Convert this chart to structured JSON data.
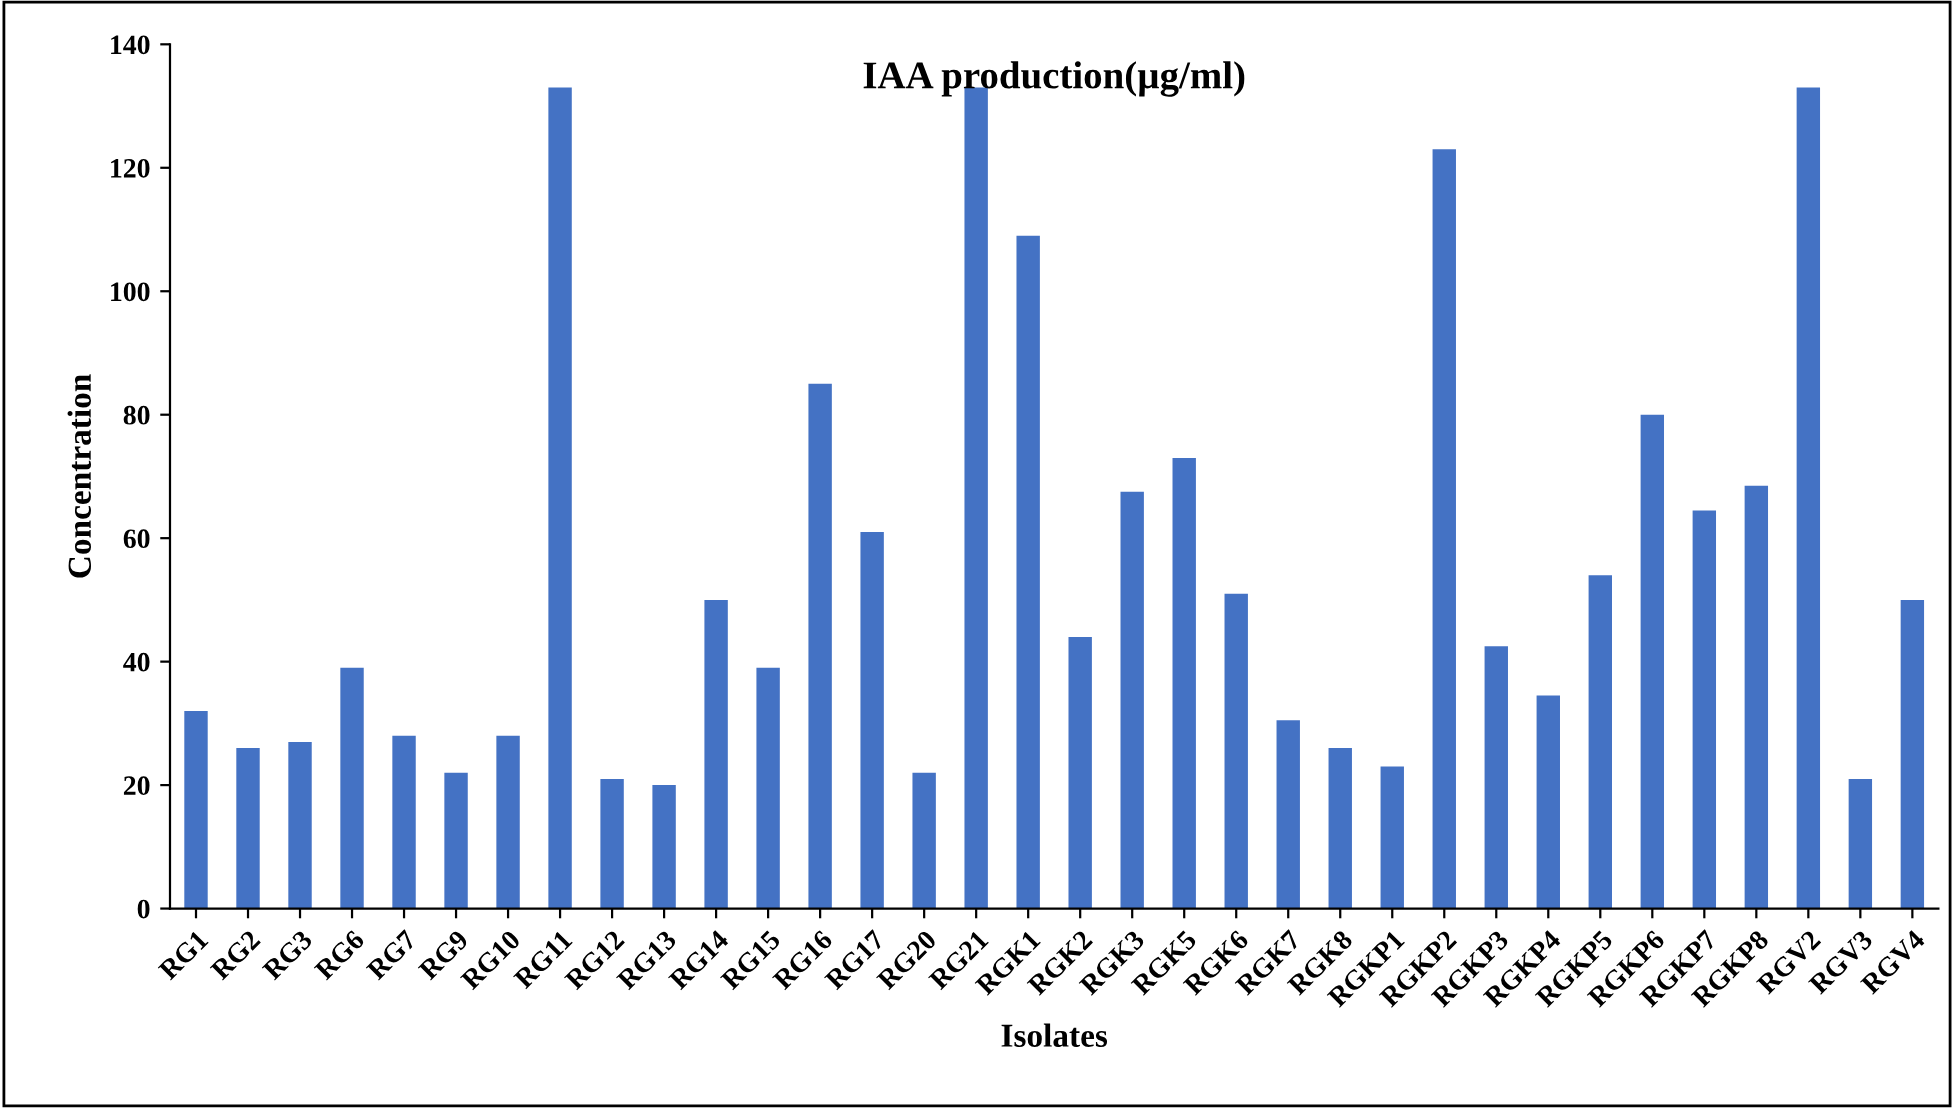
{
  "chart_data": {
    "type": "bar",
    "title": "IAA production(µg/ml)",
    "xlabel": "Isolates",
    "ylabel": "Concentration",
    "categories": [
      "RG1",
      "RG2",
      "RG3",
      "RG6",
      "RG7",
      "RG9",
      "RG10",
      "RG11",
      "RG12",
      "RG13",
      "RG14",
      "RG15",
      "RG16",
      "RG17",
      "RG20",
      "RG21",
      "RGK1",
      "RGK2",
      "RGK3",
      "RGK5",
      "RGK6",
      "RGK7",
      "RGK8",
      "RGKP1",
      "RGKP2",
      "RGKP3",
      "RGKP4",
      "RGKP5",
      "RGKP6",
      "RGKP7",
      "RGKP8",
      "RGV2",
      "RGV3",
      "RGV4"
    ],
    "values": [
      32,
      26,
      27,
      39,
      28,
      22,
      28,
      133,
      21,
      20,
      50,
      39,
      85,
      61,
      22,
      133,
      109,
      44,
      67.5,
      73,
      51,
      30.5,
      26,
      23,
      123,
      42.5,
      34.5,
      54,
      80,
      64.5,
      68.5,
      133,
      21,
      50
    ],
    "color": "#4472c4",
    "ylim": [
      0,
      140
    ],
    "yticks": [
      0,
      20,
      40,
      60,
      80,
      100,
      120,
      140
    ],
    "grid": false,
    "legend": false
  }
}
